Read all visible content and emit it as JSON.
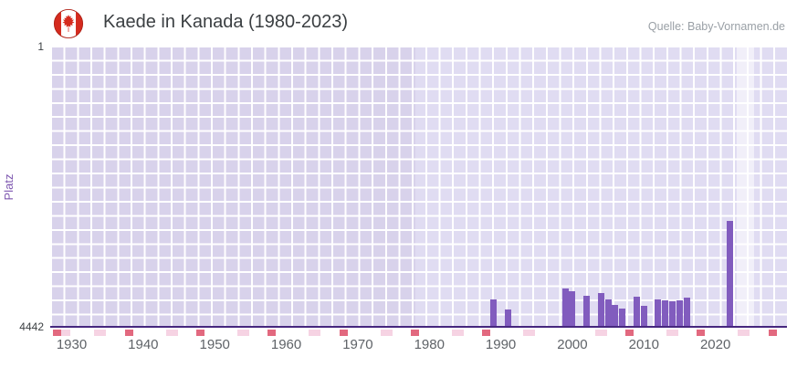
{
  "header": {
    "title": "Kaede in Kanada (1980-2023)",
    "source": "Quelle: Baby-Vornamen.de"
  },
  "chart_data": {
    "type": "bar",
    "title": "Kaede in Kanada (1980-2023)",
    "source": "Quelle: Baby-Vornamen.de",
    "ylabel": "Platz",
    "y_axis": {
      "top_label": "1",
      "bottom_label": "4442",
      "min": 1,
      "max": 4442,
      "inverted": true
    },
    "x_axis": {
      "range": [
        1927,
        2030
      ],
      "ticks": [
        1930,
        1940,
        1950,
        1960,
        1970,
        1980,
        1990,
        2000,
        2010,
        2020
      ]
    },
    "region_split_year": 1978,
    "highlight_band_years": [
      2023,
      2025.4
    ],
    "points": [
      {
        "year": 1989,
        "rank": 3990
      },
      {
        "year": 1991,
        "rank": 4160
      },
      {
        "year": 1999,
        "rank": 3830
      },
      {
        "year": 2000,
        "rank": 3870
      },
      {
        "year": 2002,
        "rank": 3940
      },
      {
        "year": 2004,
        "rank": 3890
      },
      {
        "year": 2005,
        "rank": 3990
      },
      {
        "year": 2006,
        "rank": 4080
      },
      {
        "year": 2007,
        "rank": 4140
      },
      {
        "year": 2009,
        "rank": 3960
      },
      {
        "year": 2010,
        "rank": 4090
      },
      {
        "year": 2012,
        "rank": 4000
      },
      {
        "year": 2013,
        "rank": 4010
      },
      {
        "year": 2014,
        "rank": 4030
      },
      {
        "year": 2015,
        "rank": 4010
      },
      {
        "year": 2016,
        "rank": 3970
      },
      {
        "year": 2022,
        "rank": 2760
      }
    ],
    "bottom_markers": {
      "dark_years": [
        1928,
        1938,
        1948,
        1958,
        1968,
        1978,
        1988,
        2008,
        2018,
        2028
      ],
      "light_years": [
        1929,
        1934,
        1944,
        1954,
        1964,
        1974,
        1984,
        1994,
        2004,
        2014,
        2024
      ]
    },
    "colors": {
      "bar": "#815cbe",
      "accent_purple": "#7e57b0",
      "plot_bg_left": "#d8d2eb",
      "plot_bg_right": "#e0dcf2",
      "grid": "#ffffff",
      "axis_line": "#46277e",
      "highlight_band": "rgba(255,255,255,0.55)",
      "marker_dark": "#e2697f",
      "marker_light": "#f6d3e3",
      "flag_red": "#d52b1e"
    }
  }
}
